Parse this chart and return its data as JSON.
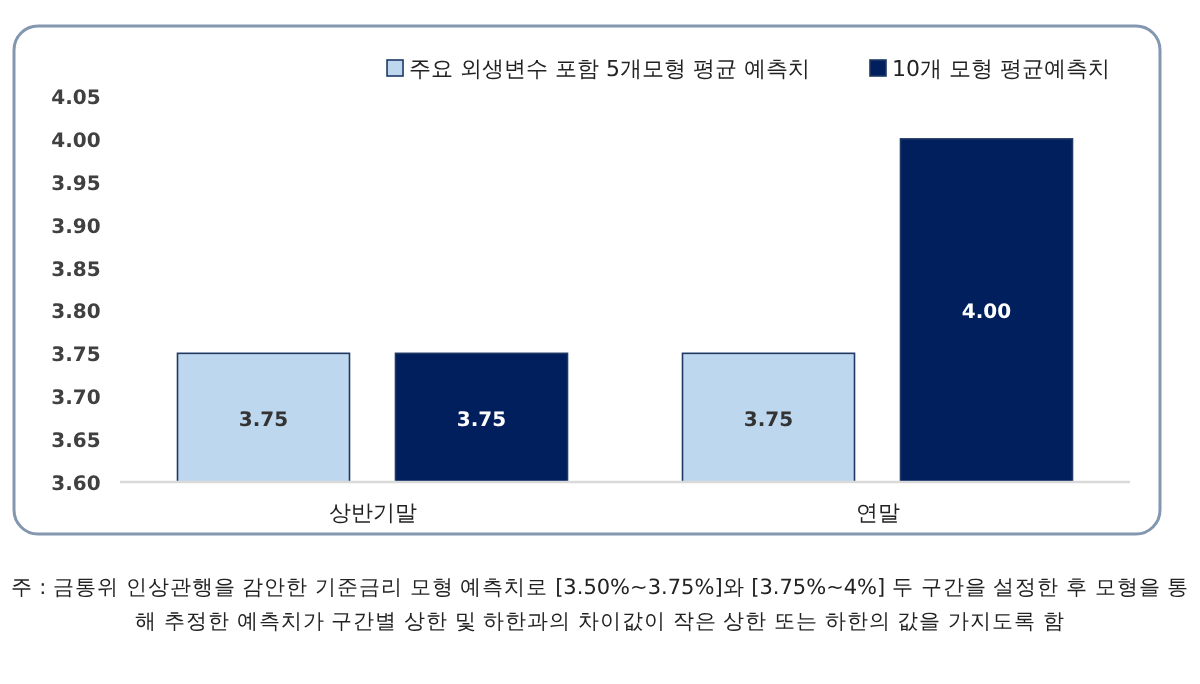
{
  "chart_data": {
    "type": "bar",
    "categories": [
      "상반기말",
      "연말"
    ],
    "series": [
      {
        "name": "주요 외생변수 포함 5개모형 평균 예측치",
        "color": "#bdd7ee",
        "values": [
          3.75,
          3.75
        ],
        "value_labels": [
          "3.75",
          "3.75"
        ]
      },
      {
        "name": "10개 모형 평균예측치",
        "color": "#001f5c",
        "values": [
          3.75,
          4.0
        ],
        "value_labels": [
          "3.75",
          "4.00"
        ]
      }
    ],
    "ylim": [
      3.6,
      4.05
    ],
    "yticks": [
      {
        "value": 3.6,
        "label": "3.60"
      },
      {
        "value": 3.65,
        "label": "3.65"
      },
      {
        "value": 3.7,
        "label": "3.70"
      },
      {
        "value": 3.75,
        "label": "3.75"
      },
      {
        "value": 3.8,
        "label": "3.80"
      },
      {
        "value": 3.85,
        "label": "3.85"
      },
      {
        "value": 3.9,
        "label": "3.90"
      },
      {
        "value": 3.95,
        "label": "3.95"
      },
      {
        "value": 4.0,
        "label": "4.00"
      },
      {
        "value": 4.05,
        "label": "4.05"
      }
    ],
    "legend": "top right",
    "annotations": [
      "주 : 금통위 인상관행을 감안한 기준금리 모형 예측치로 [3.50%~3.75%]와 [3.75%~4%] 두 구간을 설정한 후 모형을 통해 추정한 예측치가 구간별 상한 및 하한과의 차이값이 작은 상한 또는 하한의 값을 가지도록 함"
    ]
  }
}
